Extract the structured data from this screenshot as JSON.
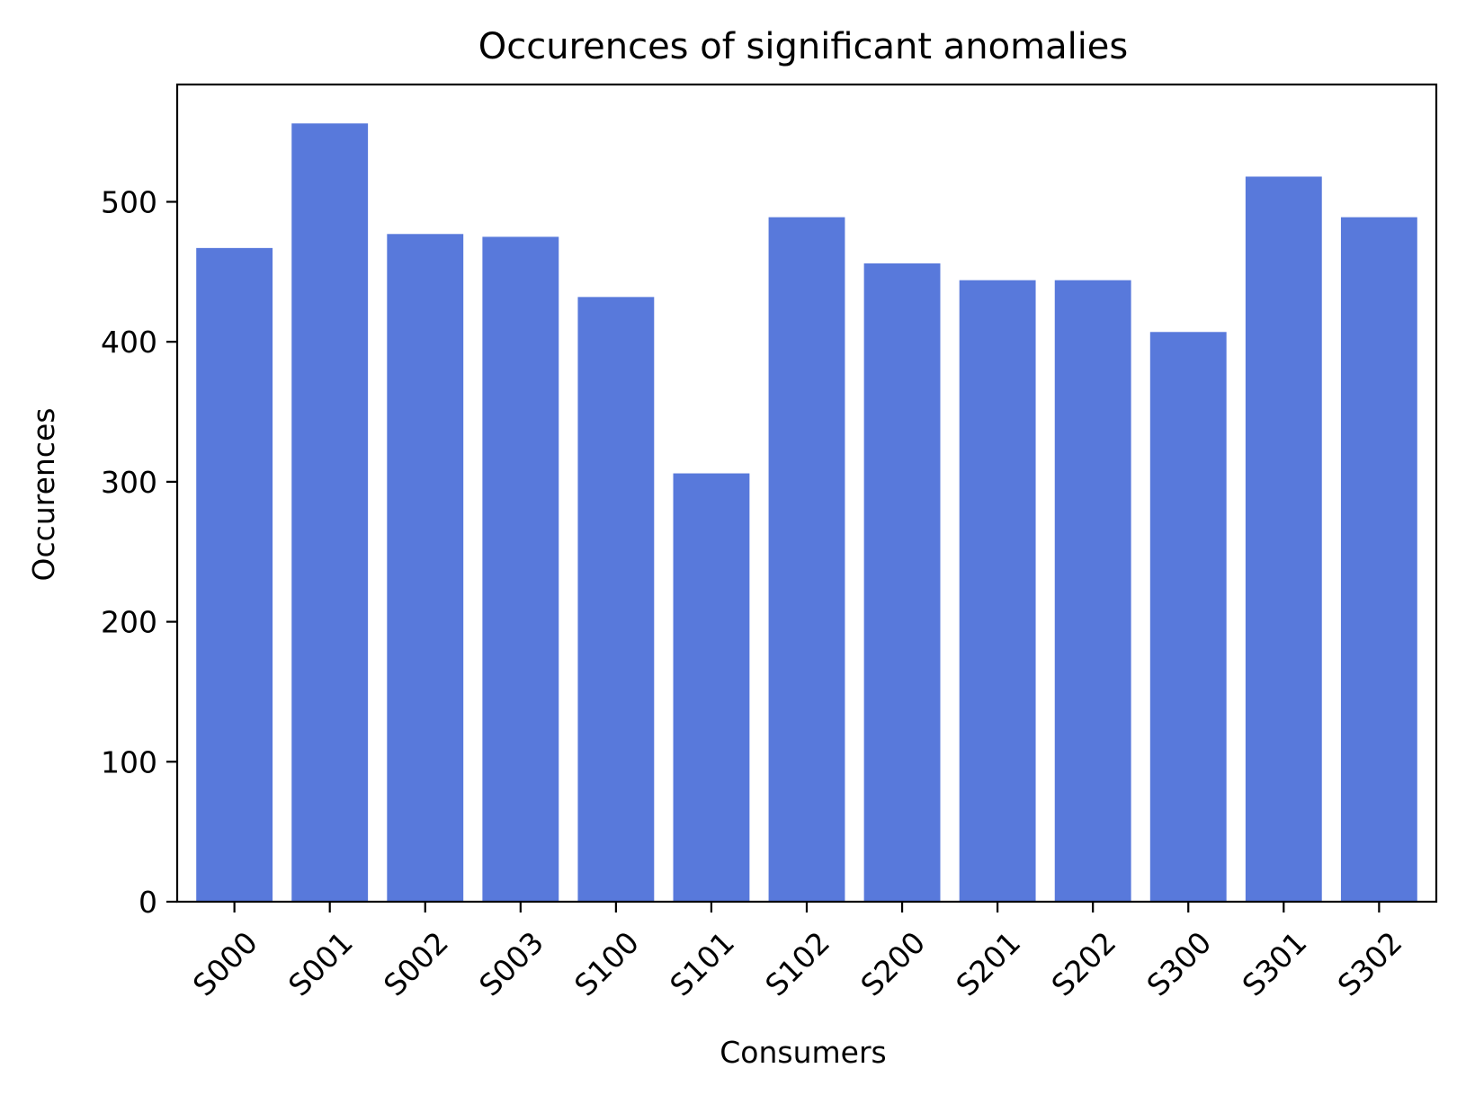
{
  "chart_data": {
    "type": "bar",
    "title": "Occurences of significant anomalies",
    "xlabel": "Consumers",
    "ylabel": "Occurences",
    "categories": [
      "S000",
      "S001",
      "S002",
      "S003",
      "S100",
      "S101",
      "S102",
      "S200",
      "S201",
      "S202",
      "S300",
      "S301",
      "S302"
    ],
    "values": [
      467,
      556,
      477,
      475,
      432,
      306,
      489,
      456,
      444,
      444,
      407,
      518,
      489
    ],
    "yticks": [
      0,
      100,
      200,
      300,
      400,
      500
    ],
    "ylim": [
      0,
      583.8
    ],
    "bar_color": "#5879db",
    "grid": false,
    "legend": "none"
  }
}
